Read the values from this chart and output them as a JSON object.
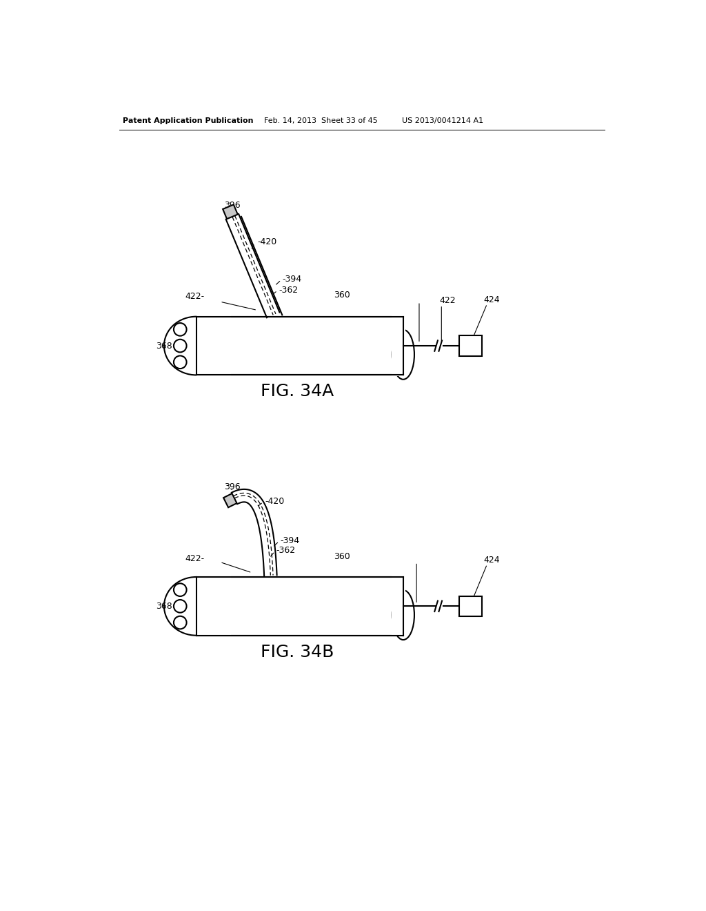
{
  "background_color": "#ffffff",
  "header_text": "Patent Application Publication",
  "header_date": "Feb. 14, 2013  Sheet 33 of 45",
  "header_patent": "US 2013/0041214 A1",
  "fig_a_label": "FIG. 34A",
  "fig_b_label": "FIG. 34B",
  "line_color": "#000000",
  "line_width": 1.5
}
